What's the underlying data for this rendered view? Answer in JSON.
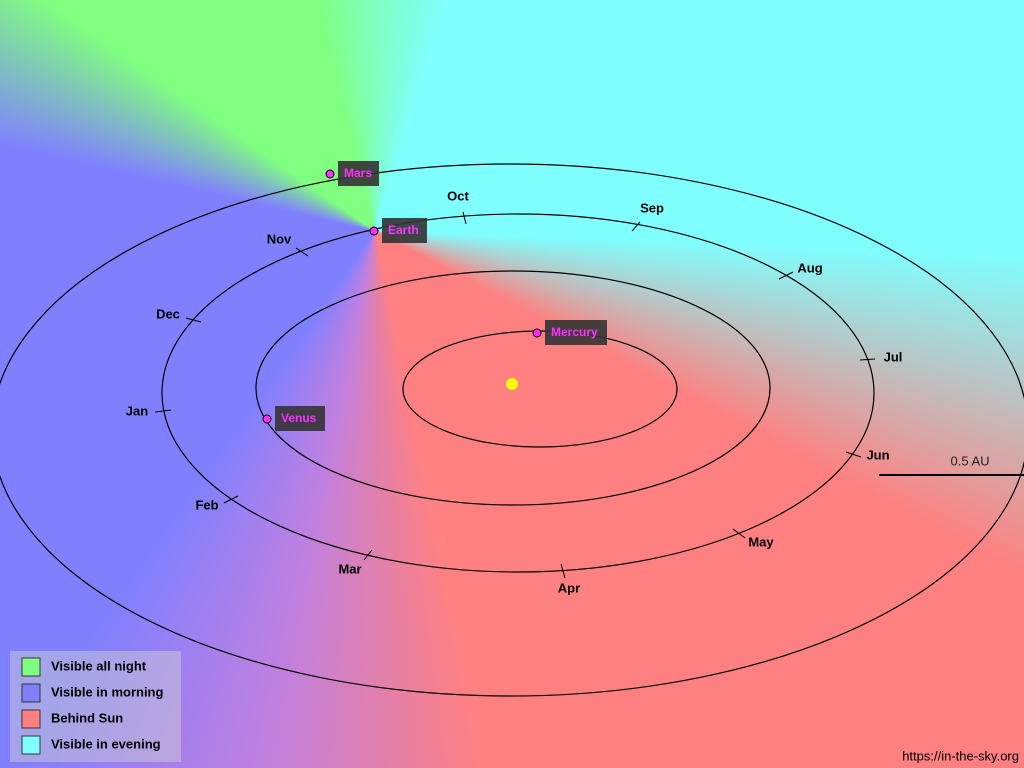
{
  "planets": [
    "Mars",
    "Earth",
    "Mercury",
    "Venus"
  ],
  "months": [
    "Oct",
    "Sep",
    "Aug",
    "Jul",
    "Jun",
    "May",
    "Apr",
    "Mar",
    "Feb",
    "Jan",
    "Dec",
    "Nov"
  ],
  "legend": [
    {
      "label": "Visible all night",
      "color": "#80ff80"
    },
    {
      "label": "Visible in morning",
      "color": "#8080ff"
    },
    {
      "label": "Behind Sun",
      "color": "#ff8080"
    },
    {
      "label": "Visible in evening",
      "color": "#80ffff"
    }
  ],
  "scale_label": "0.5 AU",
  "credit": "https://in-the-sky.org"
}
